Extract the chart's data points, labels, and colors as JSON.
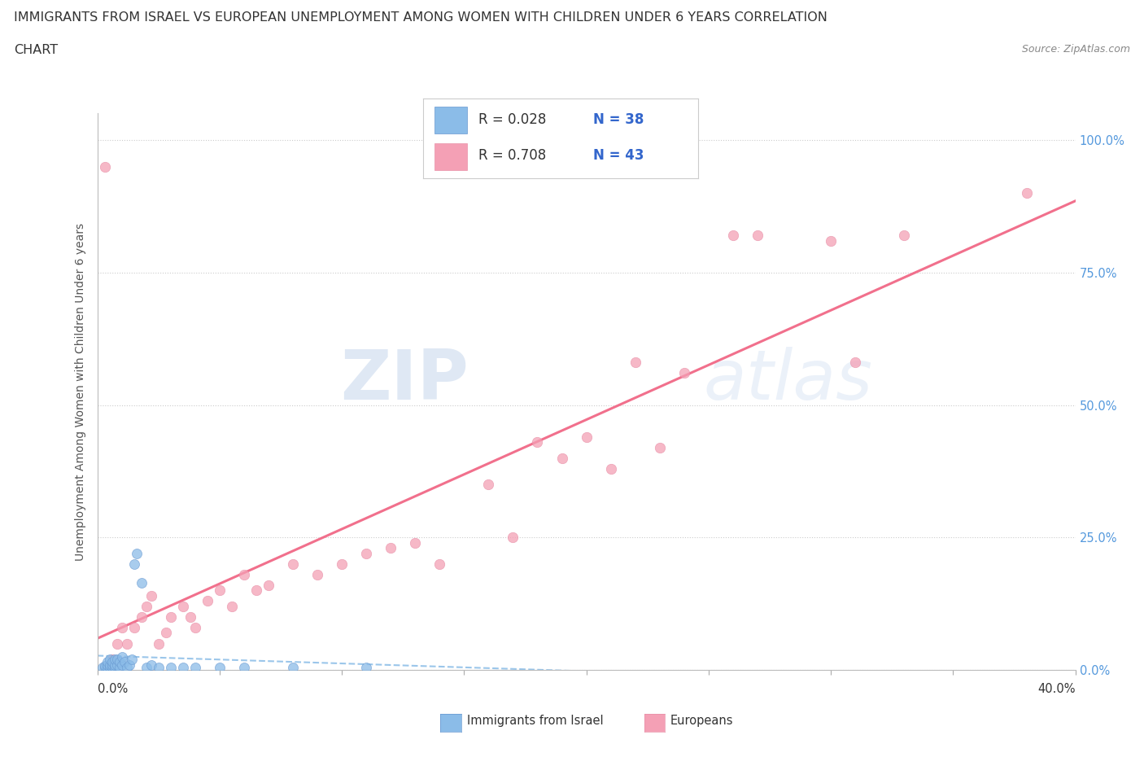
{
  "title_line1": "IMMIGRANTS FROM ISRAEL VS EUROPEAN UNEMPLOYMENT AMONG WOMEN WITH CHILDREN UNDER 6 YEARS CORRELATION",
  "title_line2": "CHART",
  "source": "Source: ZipAtlas.com",
  "ylabel": "Unemployment Among Women with Children Under 6 years",
  "ytick_labels": [
    "0.0%",
    "25.0%",
    "50.0%",
    "75.0%",
    "100.0%"
  ],
  "ytick_values": [
    0.0,
    0.25,
    0.5,
    0.75,
    1.0
  ],
  "legend_label1": "Immigrants from Israel",
  "legend_label2": "Europeans",
  "legend_R1": "R = 0.028",
  "legend_N1": "N = 38",
  "legend_R2": "R = 0.708",
  "legend_N2": "N = 43",
  "color_israel": "#8bbce8",
  "color_europe": "#f4a0b5",
  "color_israel_line": "#90c0e8",
  "color_europe_line": "#f06080",
  "watermark_zip": "ZIP",
  "watermark_atlas": "atlas",
  "R_israel": 0.028,
  "R_europe": 0.708,
  "israel_x": [
    0.002,
    0.003,
    0.003,
    0.004,
    0.004,
    0.004,
    0.005,
    0.005,
    0.005,
    0.006,
    0.006,
    0.006,
    0.007,
    0.007,
    0.007,
    0.008,
    0.008,
    0.009,
    0.009,
    0.01,
    0.01,
    0.011,
    0.012,
    0.013,
    0.014,
    0.015,
    0.016,
    0.018,
    0.02,
    0.022,
    0.025,
    0.03,
    0.035,
    0.04,
    0.05,
    0.06,
    0.08,
    0.11
  ],
  "israel_y": [
    0.005,
    0.005,
    0.008,
    0.005,
    0.01,
    0.015,
    0.005,
    0.01,
    0.02,
    0.005,
    0.01,
    0.015,
    0.005,
    0.01,
    0.02,
    0.01,
    0.02,
    0.005,
    0.015,
    0.01,
    0.025,
    0.015,
    0.005,
    0.01,
    0.02,
    0.2,
    0.22,
    0.165,
    0.005,
    0.01,
    0.005,
    0.005,
    0.005,
    0.005,
    0.005,
    0.005,
    0.005,
    0.005
  ],
  "europe_x": [
    0.003,
    0.006,
    0.008,
    0.01,
    0.012,
    0.015,
    0.018,
    0.02,
    0.022,
    0.025,
    0.028,
    0.03,
    0.035,
    0.038,
    0.04,
    0.045,
    0.05,
    0.055,
    0.06,
    0.065,
    0.07,
    0.08,
    0.09,
    0.1,
    0.11,
    0.12,
    0.13,
    0.14,
    0.16,
    0.17,
    0.18,
    0.19,
    0.2,
    0.21,
    0.22,
    0.23,
    0.24,
    0.26,
    0.27,
    0.3,
    0.31,
    0.33,
    0.38
  ],
  "europe_y": [
    0.95,
    0.02,
    0.05,
    0.08,
    0.05,
    0.08,
    0.1,
    0.12,
    0.14,
    0.05,
    0.07,
    0.1,
    0.12,
    0.1,
    0.08,
    0.13,
    0.15,
    0.12,
    0.18,
    0.15,
    0.16,
    0.2,
    0.18,
    0.2,
    0.22,
    0.23,
    0.24,
    0.2,
    0.35,
    0.25,
    0.43,
    0.4,
    0.44,
    0.38,
    0.58,
    0.42,
    0.56,
    0.82,
    0.82,
    0.81,
    0.58,
    0.82,
    0.9
  ]
}
